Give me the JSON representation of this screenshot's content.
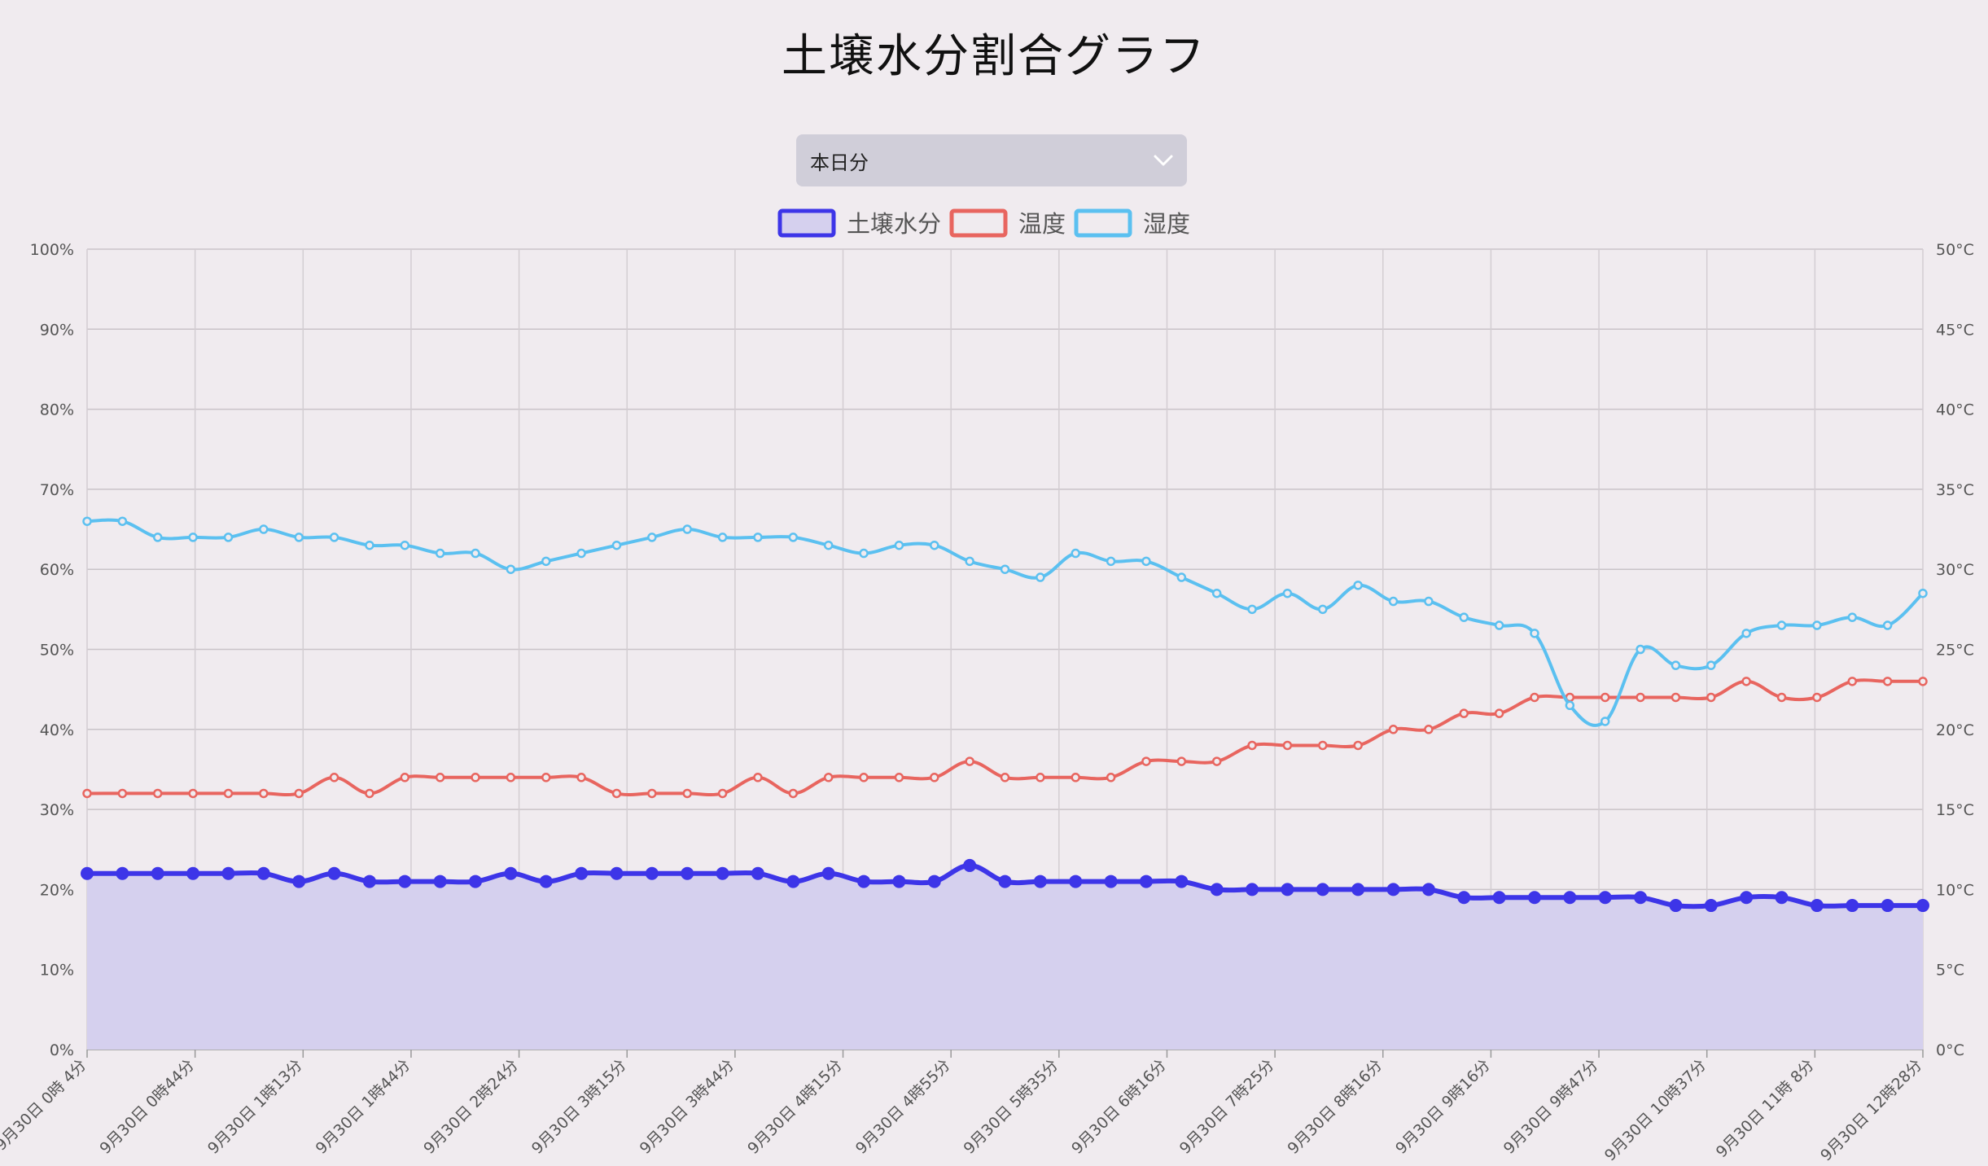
{
  "page": {
    "title": "土壌水分割合グラフ",
    "range_select": {
      "value": "本日分",
      "icon": "chevron-down-icon"
    }
  },
  "chart_data": {
    "type": "line",
    "title": "土壌水分割合グラフ",
    "legend_position": "top-center",
    "grid": true,
    "x_ticks": [
      "9月30日  0時 4分",
      "9月30日  0時44分",
      "9月30日  1時13分",
      "9月30日  1時44分",
      "9月30日  2時24分",
      "9月30日  3時15分",
      "9月30日  3時44分",
      "9月30日  4時15分",
      "9月30日  4時55分",
      "9月30日  5時35分",
      "9月30日  6時16分",
      "9月30日  7時25分",
      "9月30日  8時16分",
      "9月30日  9時16分",
      "9月30日  9時47分",
      "9月30日 10時37分",
      "9月30日 11時 8分",
      "9月30日 12時28分"
    ],
    "y_left": {
      "ticks": [
        "0%",
        "10%",
        "20%",
        "30%",
        "40%",
        "50%",
        "60%",
        "70%",
        "80%",
        "90%",
        "100%"
      ],
      "range": [
        0,
        100
      ],
      "unit": "%"
    },
    "y_right": {
      "ticks": [
        "0°C",
        "5°C",
        "10°C",
        "15°C",
        "20°C",
        "25°C",
        "30°C",
        "35°C",
        "40°C",
        "45°C",
        "50°C"
      ],
      "range": [
        0,
        50
      ],
      "unit": "°C"
    },
    "series": [
      {
        "name": "土壌水分",
        "axis": "left",
        "color": "#3d35e8",
        "fill": "#d5d0ee",
        "filled": true,
        "values": [
          22,
          22,
          22,
          22,
          22,
          22,
          21,
          22,
          21,
          21,
          21,
          21,
          22,
          21,
          22,
          22,
          22,
          22,
          22,
          22,
          21,
          22,
          21,
          21,
          21,
          23,
          21,
          21,
          21,
          21,
          21,
          21,
          20,
          20,
          20,
          20,
          20,
          20,
          20,
          19,
          19,
          19,
          19,
          19,
          19,
          18,
          18,
          19,
          19,
          18,
          18,
          18,
          18
        ]
      },
      {
        "name": "温度",
        "axis": "right",
        "color": "#e8655f",
        "filled": false,
        "values": [
          16,
          16,
          16,
          16,
          16,
          16,
          16,
          17,
          16,
          17,
          17,
          17,
          17,
          17,
          17,
          16,
          16,
          16,
          16,
          17,
          16,
          17,
          17,
          17,
          17,
          18,
          17,
          17,
          17,
          17,
          18,
          18,
          18,
          19,
          19,
          19,
          19,
          20,
          20,
          21,
          21,
          22,
          22,
          22,
          22,
          22,
          22,
          23,
          22,
          22,
          23,
          23,
          23
        ]
      },
      {
        "name": "湿度",
        "axis": "left",
        "color": "#5bc0f0",
        "filled": false,
        "values": [
          66,
          66,
          64,
          64,
          64,
          65,
          64,
          64,
          63,
          63,
          62,
          62,
          60,
          61,
          62,
          63,
          64,
          65,
          64,
          64,
          64,
          63,
          62,
          63,
          63,
          61,
          60,
          59,
          62,
          61,
          61,
          59,
          57,
          55,
          57,
          55,
          58,
          56,
          56,
          54,
          53,
          52,
          43,
          41,
          50,
          48,
          48,
          52,
          53,
          53,
          54,
          53,
          57
        ]
      }
    ]
  }
}
